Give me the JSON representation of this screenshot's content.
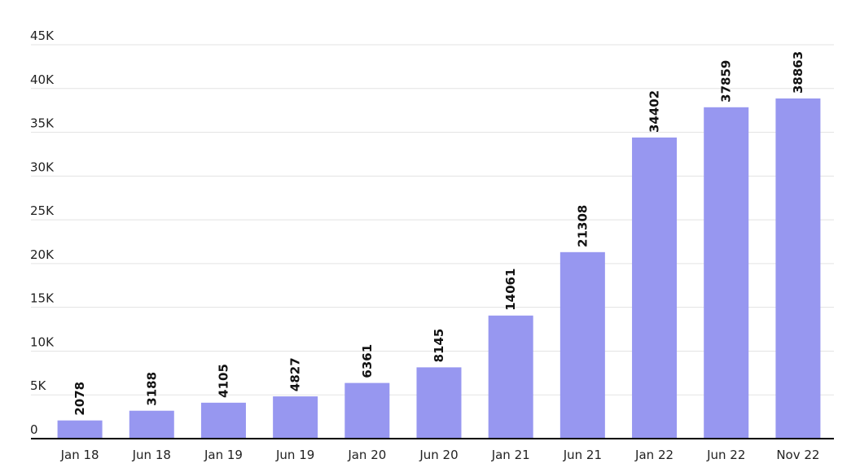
{
  "chart_data": {
    "type": "bar",
    "title": "",
    "xlabel": "",
    "ylabel": "",
    "categories": [
      "Jan 18",
      "Jun 18",
      "Jan 19",
      "Jun 19",
      "Jan 20",
      "Jun 20",
      "Jan 21",
      "Jun 21",
      "Jan 22",
      "Jun 22",
      "Nov 22"
    ],
    "values": [
      2078,
      3188,
      4105,
      4827,
      6361,
      8145,
      14061,
      21308,
      34402,
      37859,
      38863
    ],
    "data_labels": [
      "2078",
      "3188",
      "4105",
      "4827",
      "6361",
      "8145",
      "14061",
      "21308",
      "34402",
      "37859",
      "38863"
    ],
    "ylim": [
      0,
      45000
    ],
    "y_ticks": [
      0,
      5000,
      10000,
      15000,
      20000,
      25000,
      30000,
      35000,
      40000,
      45000
    ],
    "y_tick_labels": [
      "0",
      "5K",
      "10K",
      "15K",
      "20K",
      "25K",
      "30K",
      "35K",
      "40K",
      "45K"
    ],
    "grid": true,
    "legend": "none",
    "bar_color": "#9797f0"
  }
}
